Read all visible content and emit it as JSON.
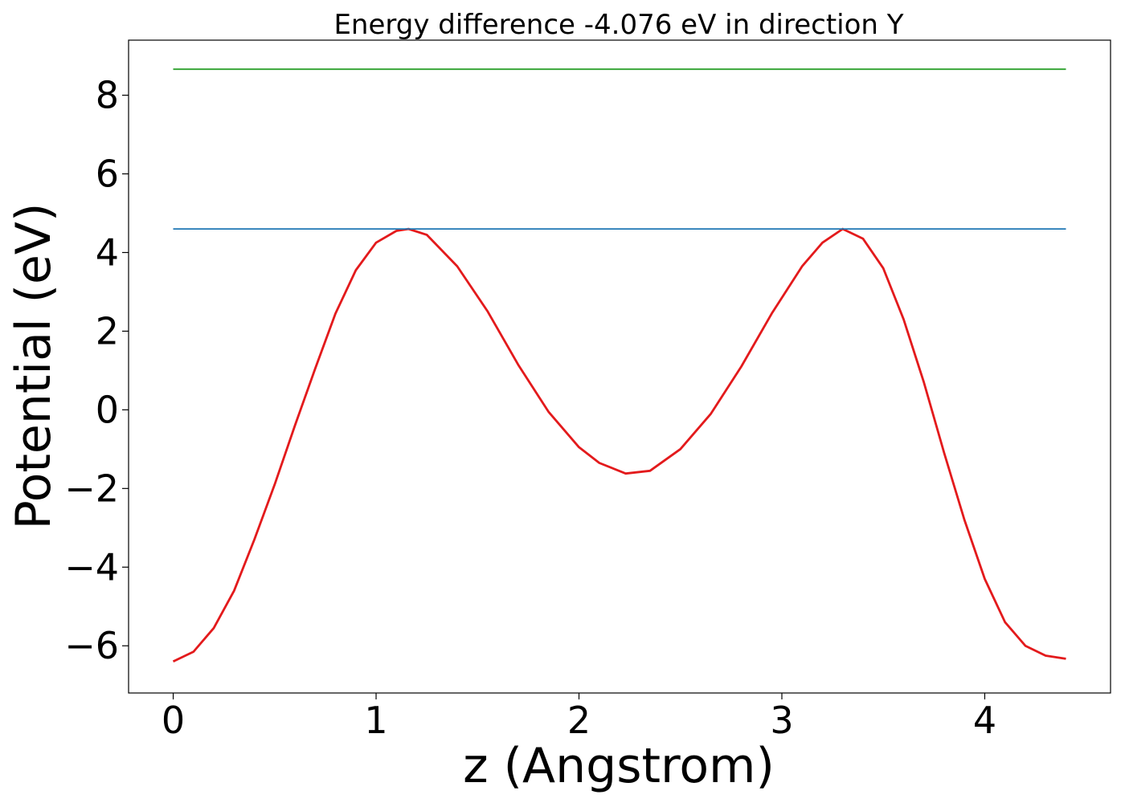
{
  "chart_data": {
    "type": "line",
    "title": "Energy difference -4.076 eV in direction Y",
    "xlabel": "z (Angstrom)",
    "ylabel": "Potential (eV)",
    "xlim": [
      -0.22,
      4.62
    ],
    "ylim": [
      -7.2,
      9.4
    ],
    "xticks": [
      {
        "value": 0,
        "label": "0"
      },
      {
        "value": 1,
        "label": "1"
      },
      {
        "value": 2,
        "label": "2"
      },
      {
        "value": 3,
        "label": "3"
      },
      {
        "value": 4,
        "label": "4"
      }
    ],
    "yticks": [
      {
        "value": -6,
        "label": "−6"
      },
      {
        "value": -4,
        "label": "−4"
      },
      {
        "value": -2,
        "label": "−2"
      },
      {
        "value": 0,
        "label": "0"
      },
      {
        "value": 2,
        "label": "2"
      },
      {
        "value": 4,
        "label": "4"
      },
      {
        "value": 6,
        "label": "6"
      },
      {
        "value": 8,
        "label": "8"
      }
    ],
    "grid": false,
    "series": [
      {
        "color": "#e31a1c",
        "x": [
          0.0,
          0.1,
          0.2,
          0.3,
          0.4,
          0.5,
          0.6,
          0.7,
          0.8,
          0.9,
          1.0,
          1.1,
          1.16,
          1.25,
          1.4,
          1.55,
          1.7,
          1.85,
          2.0,
          2.1,
          2.23,
          2.35,
          2.5,
          2.65,
          2.8,
          2.95,
          3.1,
          3.2,
          3.3,
          3.4,
          3.5,
          3.6,
          3.7,
          3.8,
          3.9,
          4.0,
          4.1,
          4.2,
          4.3,
          4.4
        ],
        "y": [
          -6.4,
          -6.15,
          -5.55,
          -4.6,
          -3.3,
          -1.9,
          -0.4,
          1.05,
          2.45,
          3.55,
          4.25,
          4.55,
          4.6,
          4.45,
          3.65,
          2.5,
          1.15,
          -0.05,
          -0.95,
          -1.35,
          -1.62,
          -1.55,
          -1.0,
          -0.1,
          1.1,
          2.45,
          3.65,
          4.25,
          4.6,
          4.35,
          3.6,
          2.3,
          0.7,
          -1.1,
          -2.8,
          -4.3,
          -5.4,
          -6.0,
          -6.25,
          -6.33
        ]
      },
      {
        "color": "#1f77b4",
        "x": [
          0.0,
          4.4
        ],
        "y": [
          4.6,
          4.6
        ]
      },
      {
        "color": "#2ca02c",
        "x": [
          0.0,
          4.4
        ],
        "y": [
          8.66,
          8.66
        ]
      }
    ]
  }
}
